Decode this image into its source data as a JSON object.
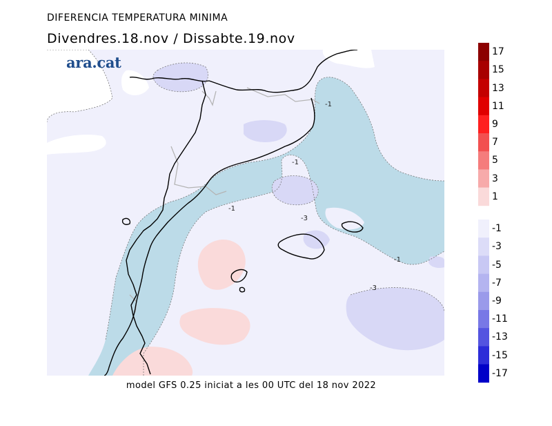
{
  "header": {
    "title": "DIFERENCIA TEMPERATURA MINIMA",
    "subtitle": "Divendres.18.nov / Dissabte.19.nov"
  },
  "brand": {
    "logo_text": "ara.cat"
  },
  "footer": {
    "caption": "model GFS 0.25 iniciat a les 00 UTC del 18 nov 2022"
  },
  "colors": {
    "land_base": "#f0f0fc",
    "sea_blue": "#bcdbe8",
    "lilac": "#d8d8f6",
    "pink": "#fadada",
    "coast": "#000000",
    "border": "#b4b4b4"
  },
  "contour_labels": [
    "-1",
    "-1",
    "-1",
    "-3",
    "-1",
    "-3"
  ],
  "legend": {
    "positive": [
      {
        "label": "17",
        "color": "#8c0000"
      },
      {
        "label": "15",
        "color": "#a80000"
      },
      {
        "label": "13",
        "color": "#c40000"
      },
      {
        "label": "11",
        "color": "#e00000"
      },
      {
        "label": "9",
        "color": "#ff2020"
      },
      {
        "label": "7",
        "color": "#f25050"
      },
      {
        "label": "5",
        "color": "#f57c7c"
      },
      {
        "label": "3",
        "color": "#f7aaaa"
      },
      {
        "label": "1",
        "color": "#fadada"
      }
    ],
    "negative": [
      {
        "label": "-1",
        "color": "#f0f0fc"
      },
      {
        "label": "-3",
        "color": "#dcdcf8"
      },
      {
        "label": "-5",
        "color": "#c8c8f4"
      },
      {
        "label": "-7",
        "color": "#b4b4f0"
      },
      {
        "label": "-9",
        "color": "#9a9aea"
      },
      {
        "label": "-11",
        "color": "#7878e6"
      },
      {
        "label": "-13",
        "color": "#5454e0"
      },
      {
        "label": "-15",
        "color": "#2c2cd8"
      },
      {
        "label": "-17",
        "color": "#0000c8"
      }
    ]
  }
}
